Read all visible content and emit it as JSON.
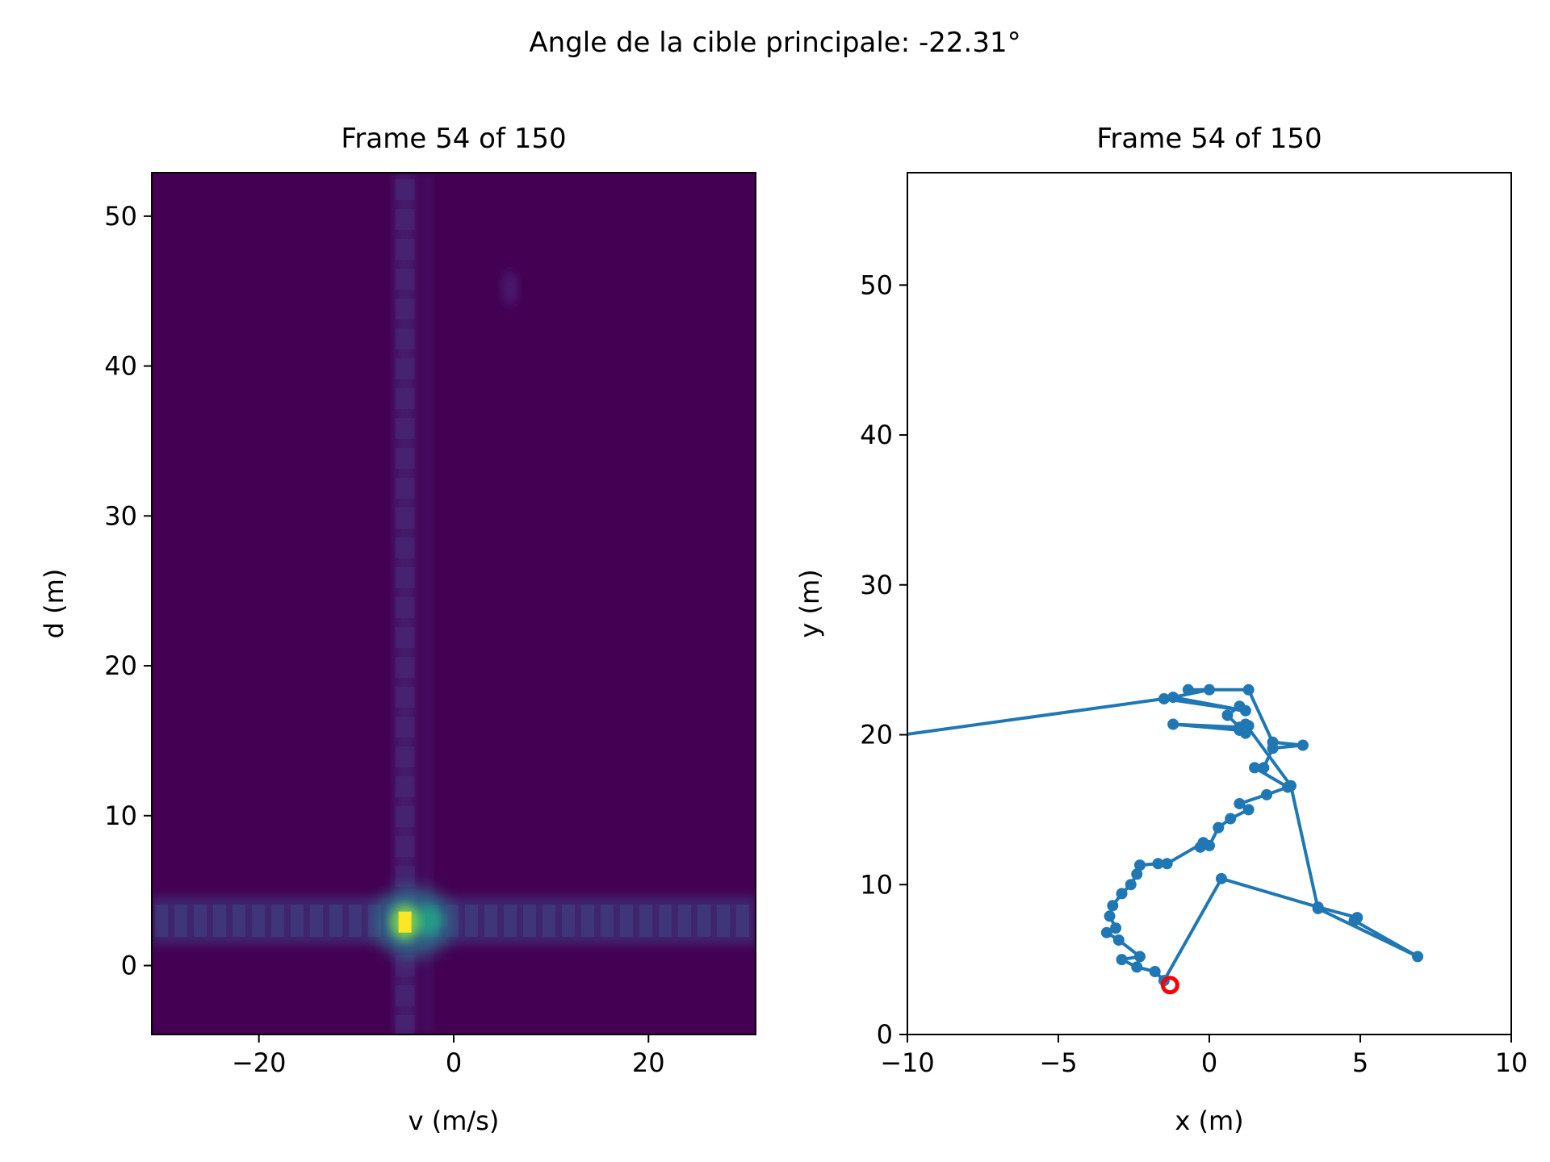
{
  "suptitle": "Angle de la cible principale: -22.31°",
  "colors": {
    "line": "#1f77b4",
    "current": "#ff0000",
    "heat_bg": "#440154"
  },
  "chart_data": [
    {
      "type": "heatmap",
      "title": "Frame 54 of 150",
      "xlabel": "v (m/s)",
      "ylabel": "d (m)",
      "xlim": [
        -31,
        31
      ],
      "ylim": [
        -4.6,
        52.9
      ],
      "xticks": [
        -20,
        0,
        20
      ],
      "yticks": [
        0,
        10,
        20,
        30,
        40,
        50
      ],
      "colormap": "viridis",
      "grid": false,
      "peak": {
        "v": -5.0,
        "d": 2.9
      },
      "ridges": {
        "v": -5.0,
        "d": 3.0
      },
      "faint_target": {
        "v": 5.8,
        "d": 45.2
      }
    },
    {
      "type": "line",
      "title": "Frame 54 of 150",
      "xlabel": "x (m)",
      "ylabel": "y (m)",
      "xlim": [
        -10,
        10
      ],
      "ylim": [
        0,
        57.5
      ],
      "xticks": [
        -10,
        -5,
        0,
        5,
        10
      ],
      "yticks": [
        0,
        10,
        20,
        30,
        40,
        50
      ],
      "grid": false,
      "series": [
        {
          "points": [
            [
              -13,
              19.2
            ],
            [
              -1.5,
              22.4
            ],
            [
              1.2,
              21.6
            ],
            [
              -1.2,
              22.5
            ],
            [
              0.0,
              23.0
            ],
            [
              -0.7,
              23.0
            ],
            [
              1.3,
              23.0
            ],
            [
              2.1,
              19.5
            ],
            [
              3.1,
              19.3
            ],
            [
              2.1,
              19.1
            ],
            [
              1.8,
              17.8
            ],
            [
              1.5,
              17.8
            ],
            [
              2.6,
              16.5
            ],
            [
              1.9,
              16.0
            ],
            [
              1.0,
              15.4
            ],
            [
              1.3,
              15.0
            ],
            [
              0.7,
              14.4
            ],
            [
              0.3,
              13.8
            ],
            [
              0.0,
              12.6
            ],
            [
              -0.3,
              12.5
            ],
            [
              -0.2,
              12.8
            ],
            [
              -1.4,
              11.4
            ],
            [
              -1.7,
              11.4
            ],
            [
              -2.3,
              11.3
            ],
            [
              -2.4,
              10.7
            ],
            [
              -2.6,
              10.0
            ],
            [
              -2.9,
              9.4
            ],
            [
              -3.2,
              8.6
            ],
            [
              -3.3,
              7.9
            ],
            [
              -3.1,
              7.1
            ],
            [
              -3.4,
              6.8
            ],
            [
              -3.0,
              6.3
            ],
            [
              -2.3,
              5.2
            ],
            [
              -2.9,
              5.0
            ],
            [
              -2.4,
              4.5
            ],
            [
              -1.8,
              4.2
            ],
            [
              -1.5,
              3.6
            ],
            [
              0.4,
              10.4
            ],
            [
              3.6,
              8.5
            ],
            [
              4.9,
              7.8
            ],
            [
              4.8,
              7.6
            ],
            [
              6.9,
              5.2
            ],
            [
              3.6,
              8.4
            ],
            [
              2.7,
              16.6
            ],
            [
              1.2,
              20.7
            ],
            [
              1.3,
              20.6
            ],
            [
              1.0,
              20.3
            ],
            [
              -1.2,
              20.7
            ],
            [
              1.0,
              20.5
            ],
            [
              1.2,
              20.1
            ],
            [
              0.6,
              21.3
            ],
            [
              1.0,
              21.9
            ]
          ]
        }
      ],
      "current": {
        "x": -1.3,
        "y": 3.3
      }
    }
  ]
}
